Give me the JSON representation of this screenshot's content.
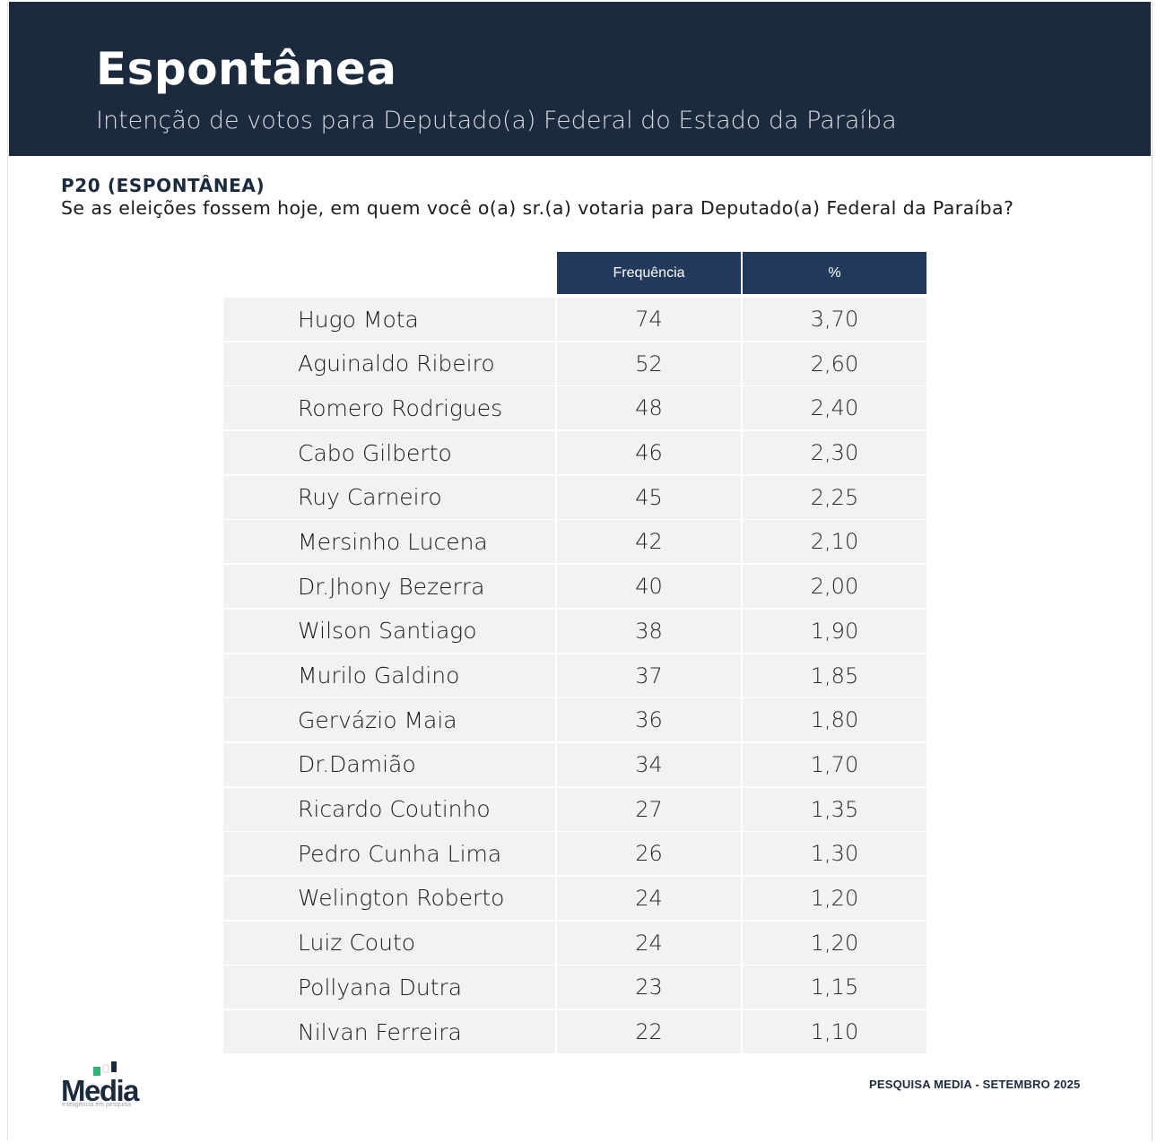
{
  "header": {
    "title": "Espontânea",
    "subtitle": "Intenção de votos para Deputado(a) Federal do Estado da Paraíba"
  },
  "question": {
    "code": "P20 (ESPONTÂNEA)",
    "text": "Se as eleições fossem hoje, em quem você o(a) sr.(a) votaria para Deputado(a) Federal da Paraíba?"
  },
  "table": {
    "columns": [
      "Frequência",
      "%"
    ],
    "rows": [
      {
        "name": "Hugo Mota",
        "freq": "74",
        "pct": "3,70"
      },
      {
        "name": "Aguinaldo Ribeiro",
        "freq": "52",
        "pct": "2,60"
      },
      {
        "name": "Romero Rodrigues",
        "freq": "48",
        "pct": "2,40"
      },
      {
        "name": "Cabo Gilberto",
        "freq": "46",
        "pct": "2,30"
      },
      {
        "name": "Ruy Carneiro",
        "freq": "45",
        "pct": "2,25"
      },
      {
        "name": "Mersinho Lucena",
        "freq": "42",
        "pct": "2,10"
      },
      {
        "name": "Dr.Jhony Bezerra",
        "freq": "40",
        "pct": "2,00"
      },
      {
        "name": "Wilson Santiago",
        "freq": "38",
        "pct": "1,90"
      },
      {
        "name": "Murilo Galdino",
        "freq": "37",
        "pct": "1,85"
      },
      {
        "name": "Gervázio Maia",
        "freq": "36",
        "pct": "1,80"
      },
      {
        "name": "Dr.Damião",
        "freq": "34",
        "pct": "1,70"
      },
      {
        "name": "Ricardo Coutinho",
        "freq": "27",
        "pct": "1,35"
      },
      {
        "name": "Pedro Cunha Lima",
        "freq": "26",
        "pct": "1,30"
      },
      {
        "name": "Welington Roberto",
        "freq": "24",
        "pct": "1,20"
      },
      {
        "name": "Luiz Couto",
        "freq": "24",
        "pct": "1,20"
      },
      {
        "name": "Pollyana Dutra",
        "freq": "23",
        "pct": "1,15"
      },
      {
        "name": "Nilvan Ferreira",
        "freq": "22",
        "pct": "1,10"
      }
    ]
  },
  "logo": {
    "text": "Media",
    "tagline": "Inteligência em pesquisa"
  },
  "footer": {
    "text": "PESQUISA MEDIA - SETEMBRO 2025"
  },
  "colors": {
    "header_bg": "#1b2a3d",
    "table_header_bg": "#213a5c",
    "cell_bg": "#f2f2f2",
    "logo_green": "#2bb673"
  }
}
